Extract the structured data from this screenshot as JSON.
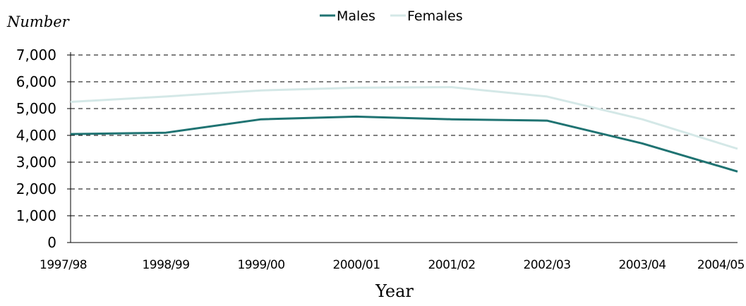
{
  "chart_data": {
    "type": "line",
    "title": "",
    "ylabel": "Number",
    "xlabel": "Year",
    "categories": [
      "1997/98",
      "1998/99",
      "1999/00",
      "2000/01",
      "2001/02",
      "2002/03",
      "2003/04",
      "2004/05"
    ],
    "y_ticks": [
      "0",
      "1,000",
      "2,000",
      "3,000",
      "4,000",
      "5,000",
      "6,000",
      "7,000"
    ],
    "ylim": [
      0,
      7000
    ],
    "grid": "dashed horizontal",
    "legend_placement": "top-center",
    "series": [
      {
        "name": "Males",
        "color": "#1f7372",
        "values": [
          4050,
          4100,
          4600,
          4700,
          4600,
          4550,
          3700,
          2650
        ]
      },
      {
        "name": "Females",
        "color": "#d4e8e7",
        "values": [
          5250,
          5450,
          5680,
          5780,
          5800,
          5450,
          4600,
          3500
        ]
      }
    ]
  }
}
